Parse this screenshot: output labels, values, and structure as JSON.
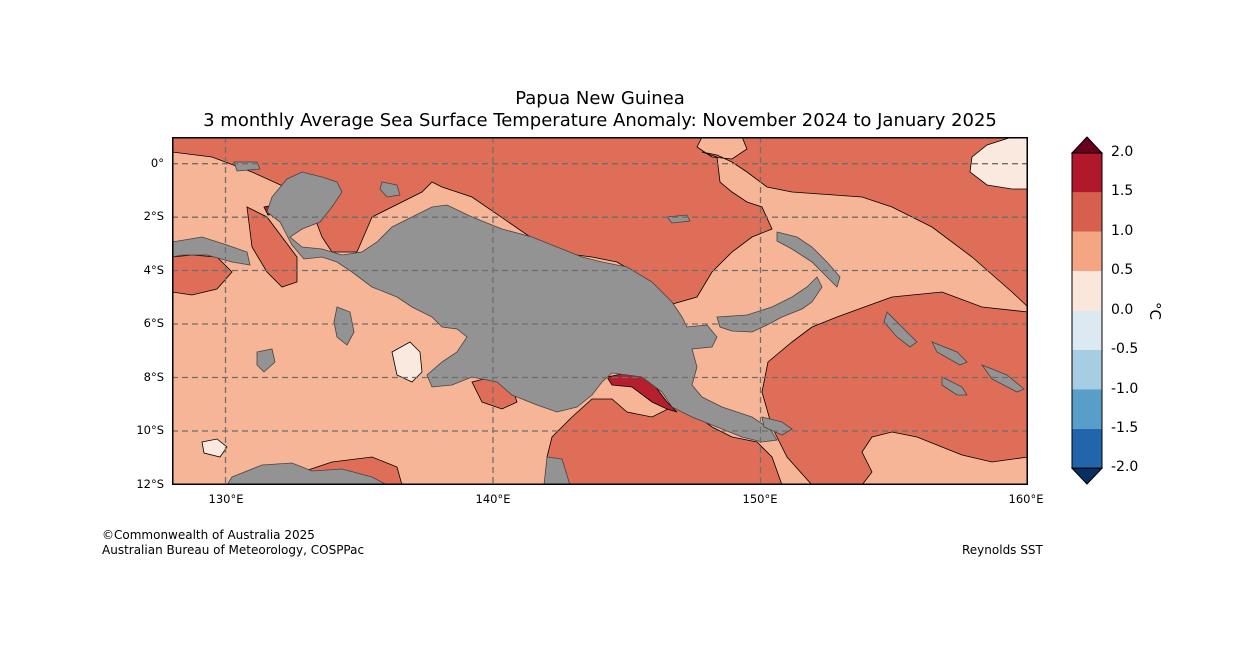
{
  "title": {
    "line1": "Papua New Guinea",
    "line2": "3 monthly Average Sea Surface Temperature Anomaly: November 2024 to January 2025"
  },
  "axes": {
    "lat_labels": [
      "0°",
      "2°S",
      "4°S",
      "6°S",
      "8°S",
      "10°S",
      "12°S"
    ],
    "lon_labels": [
      "130°E",
      "140°E",
      "150°E",
      "160°E"
    ]
  },
  "colorbar": {
    "unit": "°C",
    "labels": [
      "2.0",
      "1.5",
      "1.0",
      "0.5",
      "0.0",
      "-0.5",
      "-1.0",
      "-1.5",
      "-2.0"
    ],
    "colors": {
      "above_2_0": "#67001f",
      "b1_5_2_0": "#b2182b",
      "b1_0_1_5": "#d6604d",
      "b0_5_1_0": "#f4a582",
      "b0_0_0_5": "#fbe6dc",
      "bm0_5_0_0": "#dde9f2",
      "bm1_0_m0_5": "#a6cde3",
      "bm1_5_m1_0": "#589ec9",
      "bm2_0_m1_5": "#2166ac",
      "below_m2_0": "#053061"
    }
  },
  "map_colors": {
    "land": "#939393",
    "anom_0_5_1_0": "#f5b596",
    "anom_1_0_1_5": "#de6e58",
    "anom_1_5_2_0": "#b61f2e",
    "anom_0_0_0_5": "#fae9df"
  },
  "credits": {
    "copyright": "©Commonwealth of Australia 2025",
    "agency": "Australian Bureau of Meteorology, COSPPac",
    "source": "Reynolds SST"
  }
}
